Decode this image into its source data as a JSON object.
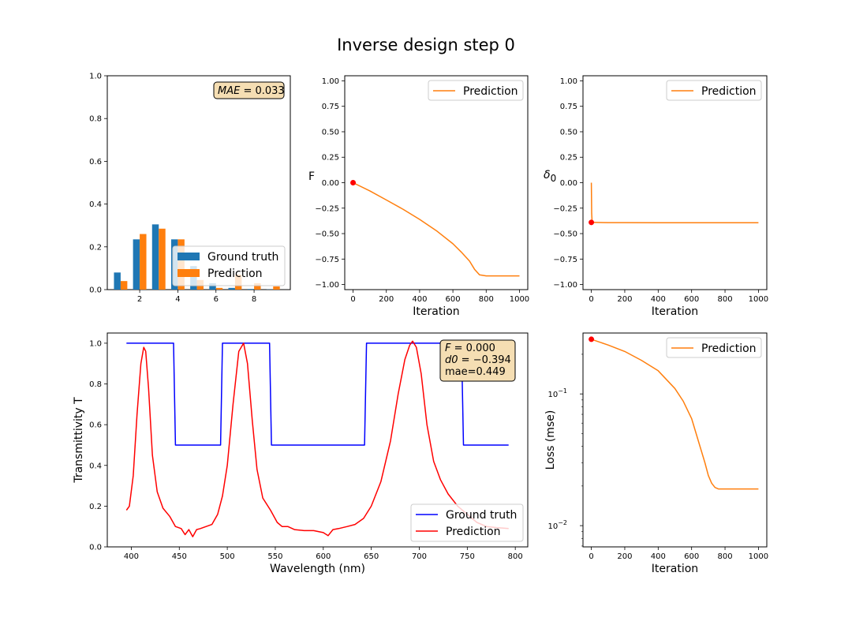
{
  "figure": {
    "title": "Inverse design step 0"
  },
  "colors": {
    "blue": "#1f77b4",
    "orange": "#ff7f0e",
    "red": "#ff0000",
    "pure_blue": "#0000ff",
    "annotation_bg": "#f5deb3"
  },
  "chart_data": [
    {
      "id": "hist",
      "type": "bar",
      "x_ticks": [
        "2",
        "4",
        "6",
        "8"
      ],
      "y_ticks": [
        "0.0",
        "0.2",
        "0.4",
        "0.6",
        "0.8",
        "1.0"
      ],
      "xlim": [
        0.3,
        9.9
      ],
      "ylim": [
        0,
        1
      ],
      "groups": [
        1,
        2,
        3,
        4,
        5,
        6,
        7,
        8,
        9
      ],
      "series": [
        {
          "name": "Ground truth",
          "color": "#1f77b4",
          "values": [
            0.08,
            0.235,
            0.305,
            0.235,
            0.11,
            0.03,
            0.008,
            0.003,
            0.001
          ]
        },
        {
          "name": "Prediction",
          "color": "#ff7f0e",
          "values": [
            0.04,
            0.26,
            0.285,
            0.235,
            0.045,
            0.008,
            0.07,
            0.03,
            0.015
          ]
        }
      ],
      "legend": {
        "placement": "lower right",
        "labels": [
          "Ground truth",
          "Prediction"
        ]
      },
      "annotation": "MAE = 0.033",
      "annotation_parts": {
        "italic": "MAE",
        "rest": " = 0.033"
      }
    },
    {
      "id": "F_curve",
      "type": "line",
      "ylabel": "F",
      "xlabel": "Iteration",
      "x_ticks": [
        "0",
        "200",
        "400",
        "600",
        "800",
        "1000"
      ],
      "y_ticks": [
        "−1.00",
        "−0.75",
        "−0.50",
        "−0.25",
        "0.00",
        "0.25",
        "0.50",
        "0.75",
        "1.00"
      ],
      "xlim": [
        -50,
        1050
      ],
      "ylim": [
        -1.05,
        1.05
      ],
      "series": [
        {
          "name": "Prediction",
          "color": "#ff7f0e",
          "x": [
            0,
            100,
            200,
            300,
            400,
            500,
            600,
            650,
            700,
            730,
            760,
            800,
            1000
          ],
          "y": [
            0.0,
            -0.08,
            -0.17,
            -0.26,
            -0.36,
            -0.47,
            -0.6,
            -0.68,
            -0.77,
            -0.85,
            -0.905,
            -0.915,
            -0.915
          ]
        }
      ],
      "marker": {
        "x": 0,
        "y": 0.0,
        "color": "#ff0000"
      },
      "legend": {
        "placement": "upper right",
        "labels": [
          "Prediction"
        ]
      }
    },
    {
      "id": "delta_curve",
      "type": "line",
      "ylabel_main": "δ",
      "ylabel_sub": "0",
      "xlabel": "Iteration",
      "x_ticks": [
        "0",
        "200",
        "400",
        "600",
        "800",
        "1000"
      ],
      "y_ticks": [
        "−1.00",
        "−0.75",
        "−0.50",
        "−0.25",
        "0.00",
        "0.25",
        "0.50",
        "0.75",
        "1.00"
      ],
      "xlim": [
        -50,
        1050
      ],
      "ylim": [
        -1.05,
        1.05
      ],
      "series": [
        {
          "name": "Prediction",
          "color": "#ff7f0e",
          "x": [
            0,
            2,
            5,
            10,
            100,
            200,
            400,
            600,
            800,
            1000
          ],
          "y": [
            0.0,
            -0.3,
            -0.39,
            -0.39,
            -0.392,
            -0.392,
            -0.393,
            -0.393,
            -0.394,
            -0.394
          ]
        }
      ],
      "marker": {
        "x": 0,
        "y": -0.39,
        "color": "#ff0000"
      },
      "legend": {
        "placement": "upper right",
        "labels": [
          "Prediction"
        ]
      }
    },
    {
      "id": "spectrum",
      "type": "line",
      "xlabel": "Wavelength (nm)",
      "ylabel": "Transmittivity T",
      "x_ticks": [
        "400",
        "450",
        "500",
        "550",
        "600",
        "650",
        "700",
        "750",
        "800"
      ],
      "y_ticks": [
        "0.0",
        "0.2",
        "0.4",
        "0.6",
        "0.8",
        "1.0"
      ],
      "xlim": [
        375,
        813
      ],
      "ylim": [
        0,
        1.05
      ],
      "series": [
        {
          "name": "Ground truth",
          "color": "#0000ff",
          "x": [
            395,
            444,
            446,
            493,
            495,
            544,
            546,
            643,
            645,
            744,
            746,
            793
          ],
          "y": [
            1.0,
            1.0,
            0.5,
            0.5,
            1.0,
            1.0,
            0.5,
            0.5,
            1.0,
            1.0,
            0.5,
            0.5
          ]
        },
        {
          "name": "Prediction",
          "color": "#ff0000",
          "x": [
            395,
            398,
            402,
            406,
            410,
            413,
            415,
            418,
            422,
            427,
            433,
            440,
            446,
            452,
            456,
            460,
            464,
            468,
            472,
            478,
            484,
            490,
            495,
            500,
            506,
            512,
            517,
            521,
            526,
            531,
            537,
            545,
            552,
            557,
            563,
            570,
            580,
            590,
            600,
            605,
            610,
            616,
            625,
            633,
            642,
            650,
            660,
            670,
            678,
            685,
            690,
            693,
            697,
            702,
            708,
            715,
            722,
            730,
            740,
            750,
            760,
            770,
            780,
            793
          ],
          "y": [
            0.18,
            0.2,
            0.35,
            0.65,
            0.9,
            0.98,
            0.96,
            0.78,
            0.45,
            0.27,
            0.19,
            0.15,
            0.1,
            0.09,
            0.06,
            0.085,
            0.05,
            0.085,
            0.09,
            0.1,
            0.11,
            0.16,
            0.25,
            0.4,
            0.7,
            0.96,
            1.0,
            0.9,
            0.62,
            0.38,
            0.24,
            0.18,
            0.12,
            0.1,
            0.1,
            0.085,
            0.08,
            0.08,
            0.07,
            0.055,
            0.085,
            0.09,
            0.1,
            0.11,
            0.14,
            0.2,
            0.32,
            0.52,
            0.75,
            0.92,
            0.99,
            1.01,
            0.98,
            0.85,
            0.6,
            0.42,
            0.33,
            0.26,
            0.2,
            0.16,
            0.12,
            0.1,
            0.095,
            0.09
          ]
        }
      ],
      "legend": {
        "placement": "lower right",
        "labels": [
          "Ground truth",
          "Prediction"
        ]
      },
      "annotation_lines": [
        {
          "italic": "F",
          "rest": " = 0.000"
        },
        {
          "italic": "d0",
          "rest": " = −0.394"
        },
        {
          "italic": "",
          "rest": "mae=0.449"
        }
      ]
    },
    {
      "id": "loss",
      "type": "line",
      "xlabel": "Iteration",
      "ylabel": "Loss (mse)",
      "log_y": true,
      "x_ticks": [
        "0",
        "200",
        "400",
        "600",
        "800",
        "1000"
      ],
      "y_ticks": [
        {
          "mant": "10",
          "exp": "−1",
          "value": 0.1
        },
        {
          "mant": "10",
          "exp": "−2",
          "value": 0.01
        }
      ],
      "xlim": [
        -50,
        1050
      ],
      "ylim": [
        0.0069,
        0.29
      ],
      "series": [
        {
          "name": "Prediction",
          "color": "#ff7f0e",
          "x": [
            0,
            100,
            200,
            300,
            400,
            500,
            550,
            600,
            650,
            680,
            700,
            720,
            740,
            760,
            800,
            1000
          ],
          "y": [
            0.26,
            0.235,
            0.21,
            0.18,
            0.15,
            0.11,
            0.088,
            0.065,
            0.04,
            0.03,
            0.024,
            0.021,
            0.0195,
            0.019,
            0.019,
            0.019
          ]
        }
      ],
      "marker": {
        "x": 0,
        "y": 0.26,
        "color": "#ff0000"
      },
      "legend": {
        "placement": "upper right",
        "labels": [
          "Prediction"
        ]
      }
    }
  ]
}
